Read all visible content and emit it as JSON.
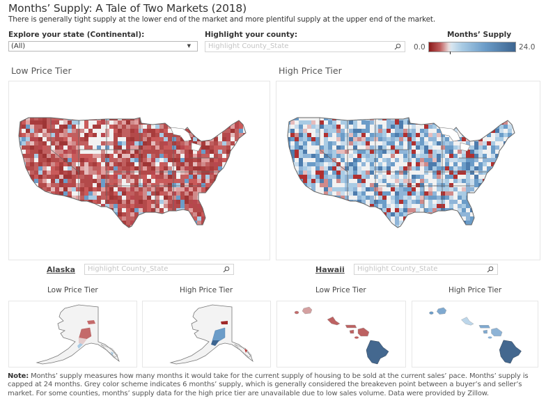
{
  "header": {
    "title": "Months’ Supply: A Tale of Two Markets (2018)",
    "subtitle": "There is generally tight supply at the lower end of the market and more plentiful supply at the upper end of the market."
  },
  "controls": {
    "state_label": "Explore your state (Continental):",
    "state_value": "(All)",
    "county_label": "Highlight your county:",
    "county_placeholder": "Highlight County_State"
  },
  "legend": {
    "title": "Months’ Supply",
    "min": "0.0",
    "max": "24.0",
    "colors": {
      "low": "#8b1a1a",
      "mid": "#e8e4e4",
      "high": "#3d6590"
    }
  },
  "main_maps": {
    "low_title": "Low Price Tier",
    "high_title": "High Price Tier"
  },
  "alaska": {
    "label": "Alaska",
    "search_placeholder": "Highlight County_State",
    "low_title": "Low Price Tier",
    "high_title": "High Price Tier"
  },
  "hawaii": {
    "label": "Hawaii",
    "search_placeholder": "Highlight County_State",
    "low_title": "Low Price Tier",
    "high_title": "High Price Tier"
  },
  "note": {
    "label": "Note:",
    "text": " Months’ supply measures how many months it would take for the current supply of housing to be sold at the current sales’ pace. Months’ supply is capped at 24 months. Grey color scheme indicates 6 months’ supply, which is generally considered the breakeven point between a buyer’s and seller’s market. For some counties, months’ supply data for the high price tier are unavailable due to low sales volume. Data were provided by Zillow."
  },
  "icons": {
    "dropdown": "chevron-down-icon",
    "search": "search-icon"
  }
}
